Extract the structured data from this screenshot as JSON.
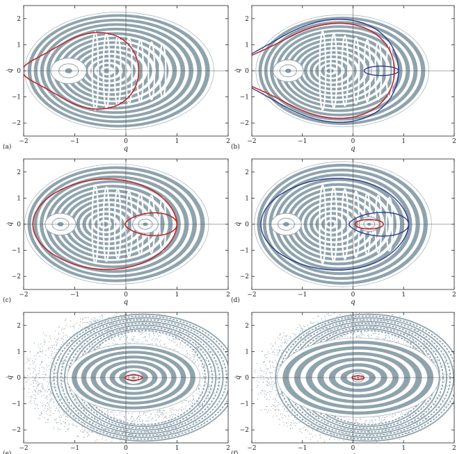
{
  "figure": {
    "panel_labels": [
      "(a)",
      "(b)",
      "(c)",
      "(d)",
      "(e)",
      "(f)"
    ]
  },
  "colors": {
    "points": "#8fa3ad",
    "red_curve": "#c0262c",
    "blue_curve": "#2b3a8c",
    "axes": "#222222",
    "zero_lines": "#555555"
  },
  "chart_data": [
    {
      "panel": "(a)",
      "type": "scatter",
      "xlabel": "q",
      "ylabel": "q̇",
      "xlim": [
        -2,
        2
      ],
      "ylim": [
        -2.5,
        2.5
      ],
      "xticks": [
        "-2",
        "-1",
        "0",
        "1",
        "2"
      ],
      "yticks": [
        "-2",
        "-1",
        "0",
        "1",
        "2"
      ],
      "outer_boundary": {
        "xmin": -1.98,
        "xmax": 1.72,
        "ymax": 2.25
      },
      "islands": [
        {
          "x": -1.12,
          "y": 0,
          "r": 0.35
        }
      ],
      "red_curve": {
        "kind": "kidney",
        "xmin": -1.58,
        "xmax": 0.25,
        "ymax": 1.45
      },
      "blue_curves": [],
      "scattered": false
    },
    {
      "panel": "(b)",
      "type": "scatter",
      "xlabel": "q",
      "ylabel": "q̇",
      "xlim": [
        -2,
        2
      ],
      "ylim": [
        -2.5,
        2.5
      ],
      "xticks": [
        "-2",
        "-1",
        "0",
        "1",
        "2"
      ],
      "yticks": [
        "-2",
        "-1",
        "0",
        "1",
        "2"
      ],
      "outer_boundary": {
        "xmin": -1.92,
        "xmax": 1.5,
        "ymax": 2.15
      },
      "islands": [
        {
          "x": -1.28,
          "y": 0,
          "r": 0.3
        }
      ],
      "red_curve": {
        "kind": "kidney",
        "xmin": -1.72,
        "xmax": 0.82,
        "ymax": 1.8
      },
      "blue_curves": [
        {
          "kind": "kidney",
          "xmin": -1.82,
          "xmax": 0.9,
          "ymax": 1.95
        },
        {
          "kind": "loop",
          "xmin": 0.22,
          "xmax": 0.9,
          "ymax": 0.18
        }
      ],
      "scattered": false
    },
    {
      "panel": "(c)",
      "type": "scatter",
      "xlabel": "q",
      "ylabel": "q̇",
      "xlim": [
        -2,
        2
      ],
      "ylim": [
        -2.5,
        2.5
      ],
      "xticks": [
        "-2",
        "-1",
        "0",
        "1",
        "2"
      ],
      "yticks": [
        "-2",
        "-1",
        "0",
        "1",
        "2"
      ],
      "outer_boundary": {
        "xmin": -1.98,
        "xmax": 1.62,
        "ymax": 2.3
      },
      "islands": [
        {
          "x": -1.28,
          "y": 0,
          "r": 0.3
        },
        {
          "x": 0.38,
          "y": 0,
          "r": 0.25
        }
      ],
      "red_curve": {
        "kind": "separatrix",
        "xmin": -1.82,
        "xmax": 1.0,
        "ymax": 2.02,
        "inner_xmin": -0.02,
        "inner_ymax": 0.48
      },
      "blue_curves": [],
      "scattered": false
    },
    {
      "panel": "(d)",
      "type": "scatter",
      "xlabel": "q",
      "ylabel": "q̇",
      "xlim": [
        -2,
        2
      ],
      "ylim": [
        -2.5,
        2.5
      ],
      "xticks": [
        "-2",
        "-1",
        "0",
        "1",
        "2"
      ],
      "yticks": [
        "-2",
        "-1",
        "0",
        "1",
        "2"
      ],
      "outer_boundary": {
        "xmin": -1.95,
        "xmax": 1.55,
        "ymax": 2.4
      },
      "islands": [
        {
          "x": -1.32,
          "y": 0,
          "r": 0.3
        },
        {
          "x": 0.32,
          "y": 0,
          "r": 0.2
        }
      ],
      "red_curve": {
        "kind": "ellipse",
        "x": 0.32,
        "y": 0,
        "rx": 0.28,
        "ry": 0.18
      },
      "blue_curves": [
        {
          "kind": "separatrix",
          "xmin": -1.82,
          "xmax": 1.1,
          "ymax": 2.05,
          "inner_xmin": -0.08,
          "inner_ymax": 0.5
        }
      ],
      "scattered": false
    },
    {
      "panel": "(e)",
      "type": "scatter",
      "xlabel": "q",
      "ylabel": "q̇",
      "xlim": [
        -2,
        2
      ],
      "ylim": [
        -2.5,
        2.5
      ],
      "xticks": [
        "-2",
        "-1",
        "0",
        "1",
        "2"
      ],
      "yticks": [
        "-2",
        "-1",
        "0",
        "1",
        "2"
      ],
      "outer_boundary": {
        "xmin": -2.0,
        "xmax": 1.8,
        "ymax": 2.5
      },
      "islands": [
        {
          "x": 0.15,
          "y": 0,
          "r": 0.18
        }
      ],
      "red_curve": {
        "kind": "ellipse",
        "x": 0.15,
        "y": 0,
        "rx": 0.17,
        "ry": 0.1
      },
      "blue_curves": [],
      "scattered": true,
      "core": {
        "x": 0.15,
        "rx": 1.3,
        "ry": 1.3
      }
    },
    {
      "panel": "(f)",
      "type": "scatter",
      "xlabel": "q",
      "ylabel": "q̇",
      "xlim": [
        -2,
        2
      ],
      "ylim": [
        -2.5,
        2.5
      ],
      "xticks": [
        "-2",
        "-1",
        "0",
        "1",
        "2"
      ],
      "yticks": [
        "-2",
        "-1",
        "0",
        "1",
        "2"
      ],
      "outer_boundary": {
        "xmin": -1.9,
        "xmax": 1.9,
        "ymax": 2.5
      },
      "islands": [
        {
          "x": 0.1,
          "y": 0,
          "r": 0.12
        }
      ],
      "red_curve": {
        "kind": "ellipse",
        "x": 0.1,
        "y": 0,
        "rx": 0.12,
        "ry": 0.07
      },
      "blue_curves": [],
      "scattered": true,
      "core": {
        "x": 0.1,
        "rx": 1.6,
        "ry": 1.52
      }
    }
  ]
}
